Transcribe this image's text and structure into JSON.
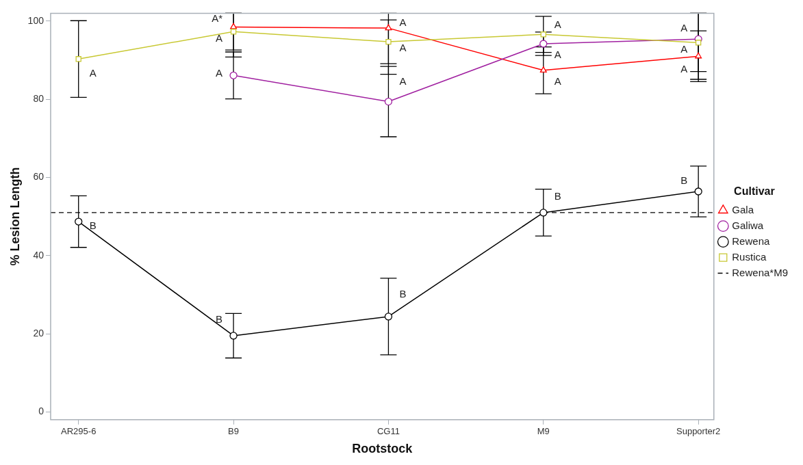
{
  "chart_data": {
    "type": "line",
    "xlabel": "Rootstock",
    "ylabel": "% Lesion Length",
    "legend_title": "Cultivar",
    "legend": "right",
    "grid": false,
    "categories": [
      "AR295-6",
      "B9",
      "CG11",
      "M9",
      "Supporter2"
    ],
    "ylim": [
      -2,
      102
    ],
    "yticks": [
      0,
      20,
      40,
      60,
      80,
      100
    ],
    "series": [
      {
        "name": "Gala",
        "color": "#ff0000",
        "marker": "triangle",
        "values": [
          null,
          98.5,
          98.2,
          87.4,
          91.0
        ],
        "errors": [
          null,
          [
            90.8,
            102
          ],
          [
            86.4,
            102
          ],
          6.0,
          6.5
        ]
      },
      {
        "name": "Galiwa",
        "color": "#a020a0",
        "marker": "circle",
        "values": [
          null,
          86.1,
          79.4,
          94.2,
          95.4
        ],
        "errors": [
          null,
          6.0,
          9.0,
          3.0,
          [
            87.1,
            102
          ]
        ]
      },
      {
        "name": "Rewena",
        "color": "#000000",
        "marker": "circle",
        "values": [
          48.7,
          19.5,
          24.4,
          51.0,
          56.4
        ],
        "errors": [
          6.6,
          5.7,
          9.8,
          6.0,
          6.5
        ]
      },
      {
        "name": "Rustica",
        "color": "#c8c832",
        "marker": "square",
        "values": [
          90.3,
          97.3,
          94.7,
          96.6,
          94.5
        ],
        "errors": [
          9.8,
          4.7,
          5.6,
          4.6,
          [
            85.1,
            102
          ]
        ]
      }
    ],
    "ref_lines": [
      {
        "axis": "y",
        "value": 51.0,
        "label": "Rewena*M9",
        "color": "#000000",
        "line_style": "dashed"
      }
    ],
    "annotations": [
      {
        "text": "A",
        "x": "AR295-6",
        "y": 86.5
      },
      {
        "text": "B",
        "x": "AR295-6",
        "y": 47.5
      },
      {
        "text": "A*",
        "x": "B9",
        "y": 100.5
      },
      {
        "text": "A",
        "x": "B9",
        "y": 95.5
      },
      {
        "text": "A",
        "x": "B9",
        "y": 86.5
      },
      {
        "text": "B",
        "x": "B9",
        "y": 23.5
      },
      {
        "text": "A",
        "x": "CG11",
        "y": 99.5
      },
      {
        "text": "A",
        "x": "CG11",
        "y": 93.0
      },
      {
        "text": "A",
        "x": "CG11",
        "y": 84.5
      },
      {
        "text": "B",
        "x": "CG11",
        "y": 30.0
      },
      {
        "text": "A",
        "x": "M9",
        "y": 99.0
      },
      {
        "text": "A",
        "x": "M9",
        "y": 91.2
      },
      {
        "text": "A",
        "x": "M9",
        "y": 84.5
      },
      {
        "text": "B",
        "x": "M9",
        "y": 55.0
      },
      {
        "text": "A",
        "x": "Supporter2",
        "y": 98.0
      },
      {
        "text": "A",
        "x": "Supporter2",
        "y": 92.6
      },
      {
        "text": "A",
        "x": "Supporter2",
        "y": 87.6
      },
      {
        "text": "B",
        "x": "Supporter2",
        "y": 59.0
      }
    ]
  }
}
